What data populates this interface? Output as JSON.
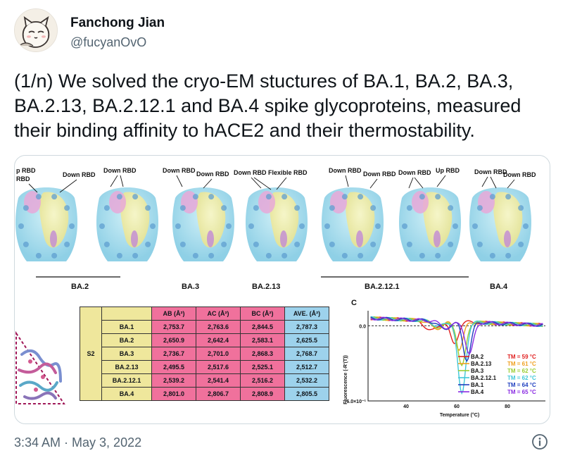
{
  "tweet": {
    "author_name": "Fanchong Jian",
    "author_handle": "@fucyanOvO",
    "text": "(1/n) We solved the cryo-EM stuctures of BA.1, BA.2, BA.3, BA.2.13, BA.2.12.1 and BA.4 spike glycoproteins, measured their binding affinity to hACE2 and their thermostability.",
    "timestamp": "3:34 AM · May 3, 2022",
    "icons": {
      "avatar": "cartoon-cat-avatar",
      "info": "info-icon"
    }
  },
  "figure": {
    "structures": [
      {
        "label": "BA.2",
        "annotations": [
          "p RBD",
          "RBD",
          "Down RBD",
          "Down RBD"
        ]
      },
      {
        "label": "BA.3",
        "annotations": [
          "Down RBD",
          "Down RBD"
        ]
      },
      {
        "label": "BA.2.13",
        "annotations": [
          "Down RBD",
          "Flexible RBD"
        ]
      },
      {
        "label": "BA.2.12.1",
        "annotations": [
          "Down RBD",
          "Down RBD",
          "Down RBD",
          "Up RBD"
        ]
      },
      {
        "label": "BA.4",
        "annotations": [
          "Down RBD",
          "Down RBD"
        ]
      }
    ],
    "table": {
      "row_group": "S2",
      "headers": [
        "AB (Å²)",
        "AC (Å²)",
        "BC (Å²)",
        "AVE. (Å²)"
      ],
      "rows": [
        {
          "name": "BA.1",
          "values": [
            "2,753.7",
            "2,763.6",
            "2,844.5",
            "2,787.3"
          ]
        },
        {
          "name": "BA.2",
          "values": [
            "2,650.9",
            "2,642.4",
            "2,583.1",
            "2,625.5"
          ]
        },
        {
          "name": "BA.3",
          "values": [
            "2,736.7",
            "2,701.0",
            "2,868.3",
            "2,768.7"
          ]
        },
        {
          "name": "BA.2.13",
          "values": [
            "2,495.5",
            "2,517.6",
            "2,525.1",
            "2,512.7"
          ]
        },
        {
          "name": "BA.2.12.1",
          "values": [
            "2,539.2",
            "2,541.4",
            "2,516.2",
            "2,532.2"
          ]
        },
        {
          "name": "BA.4",
          "values": [
            "2,801.0",
            "2,806.7",
            "2,808.9",
            "2,805.5"
          ]
        }
      ]
    },
    "chart_panel_label": "C",
    "chart_data": {
      "type": "line",
      "xlabel": "Temperature (°C)",
      "ylabel": "Fluorescence (-R'(T))",
      "y_ticks": [
        "0.0",
        "-6.0×10⁻¹"
      ],
      "x_ticks": [
        "40",
        "60",
        "80"
      ],
      "xlim": [
        25,
        95
      ],
      "ylim": [
        -0.6,
        0.12
      ],
      "series": [
        {
          "name": "BA.2",
          "tm": "TM = 59 °C",
          "color": "#e02020",
          "tm_value": 59,
          "depth": 0.18,
          "shoulder": 0.08
        },
        {
          "name": "BA.2.13",
          "tm": "TM = 61 °C",
          "color": "#f0a020",
          "tm_value": 61,
          "depth": 0.22,
          "shoulder": 0.06
        },
        {
          "name": "BA.3",
          "tm": "TM = 62 °C",
          "color": "#9acd32",
          "tm_value": 62,
          "depth": 0.36,
          "shoulder": 0.05
        },
        {
          "name": "BA.2.12.1",
          "tm": "TM = 62 °C",
          "color": "#40c8d8",
          "tm_value": 62,
          "depth": 0.58,
          "shoulder": 0.04
        },
        {
          "name": "BA.1",
          "tm": "TM = 64 °C",
          "color": "#1f3fbf",
          "tm_value": 64,
          "depth": 0.3,
          "shoulder": 0.06
        },
        {
          "name": "BA.4",
          "tm": "TM = 65 °C",
          "color": "#8a2be2",
          "tm_value": 65,
          "depth": 0.26,
          "shoulder": 0.05
        }
      ]
    }
  }
}
